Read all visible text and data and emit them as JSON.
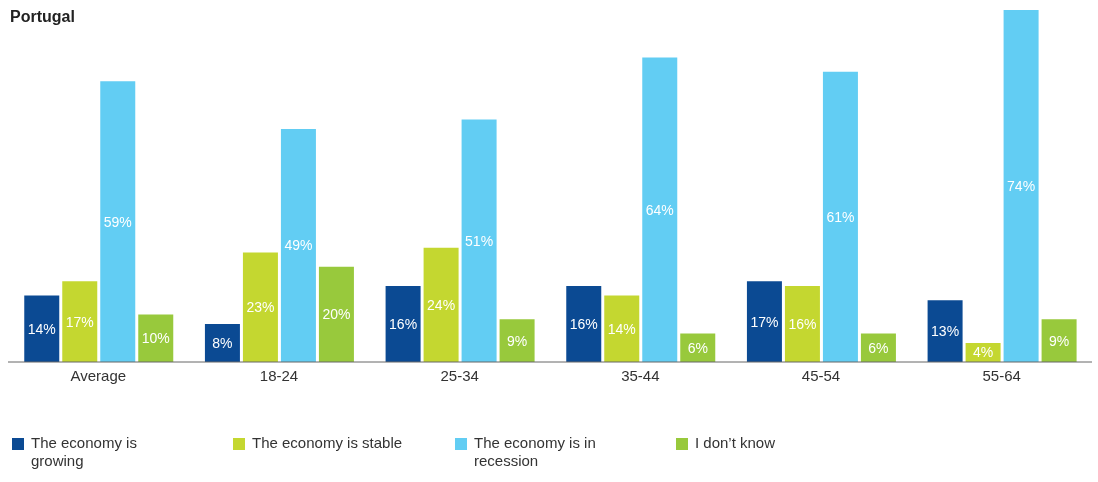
{
  "chart_data": {
    "type": "bar",
    "title": "Portugal",
    "categories": [
      "Average",
      "18-24",
      "25-34",
      "35-44",
      "45-54",
      "55-64"
    ],
    "series": [
      {
        "name": "The economy is growing",
        "color": "#0b4a93",
        "values": [
          14,
          8,
          16,
          16,
          17,
          13
        ],
        "value_labels": [
          "14%",
          "8%",
          "16%",
          "16%",
          "17%",
          "13%"
        ]
      },
      {
        "name": "The economy is stable",
        "color": "#c4d730",
        "values": [
          17,
          23,
          24,
          14,
          16,
          4
        ],
        "value_labels": [
          "17%",
          "23%",
          "24%",
          "14%",
          "16%",
          "4%"
        ]
      },
      {
        "name": "The economy is in recession",
        "color": "#62cdf3",
        "values": [
          59,
          49,
          51,
          64,
          61,
          74
        ],
        "value_labels": [
          "59%",
          "49%",
          "51%",
          "64%",
          "61%",
          "74%"
        ]
      },
      {
        "name": "I don’t know",
        "color": "#98c93c",
        "values": [
          10,
          20,
          9,
          6,
          6,
          9
        ],
        "value_labels": [
          "10%",
          "20%",
          "9%",
          "6%",
          "6%",
          "9%"
        ]
      }
    ],
    "grid": false,
    "legend": "bottom"
  }
}
